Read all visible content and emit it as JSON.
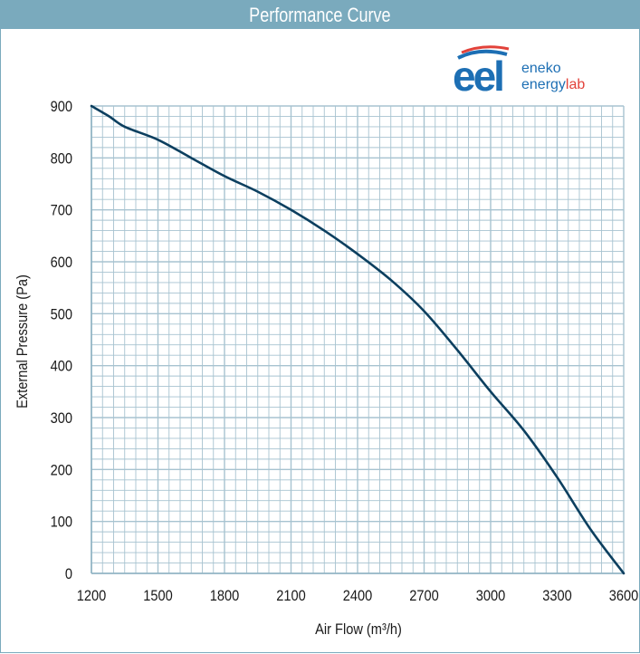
{
  "colors": {
    "title_bar": "#7aaabd",
    "grid": "#a7c3d0",
    "curve": "#0c3f5f",
    "logo_blue": "#1d6fb4",
    "logo_red": "#e2423a"
  },
  "logo": {
    "mark": "eel",
    "line1": "eneko",
    "line2_prefix": "energy",
    "line2_suffix": "lab"
  },
  "chart_data": {
    "type": "line",
    "title": "Performance Curve",
    "xlabel": "Air Flow (m³/h)",
    "ylabel": "External Pressure (Pa)",
    "xlim": [
      1200,
      3600
    ],
    "ylim": [
      0,
      900
    ],
    "x_ticks": [
      "1200",
      "1500",
      "1800",
      "2100",
      "2400",
      "2700",
      "3000",
      "3300",
      "3600"
    ],
    "y_ticks": [
      "0",
      "100",
      "200",
      "300",
      "400",
      "500",
      "600",
      "700",
      "800",
      "900"
    ],
    "grid": true,
    "series": [
      {
        "x": [
          1200,
          1280,
          1350,
          1500,
          1650,
          1800,
          1950,
          2100,
          2250,
          2400,
          2550,
          2700,
          2850,
          3000,
          3150,
          3300,
          3450,
          3600
        ],
        "y": [
          900,
          880,
          860,
          835,
          800,
          765,
          735,
          700,
          660,
          615,
          565,
          505,
          430,
          350,
          275,
          185,
          85,
          0
        ]
      }
    ]
  }
}
